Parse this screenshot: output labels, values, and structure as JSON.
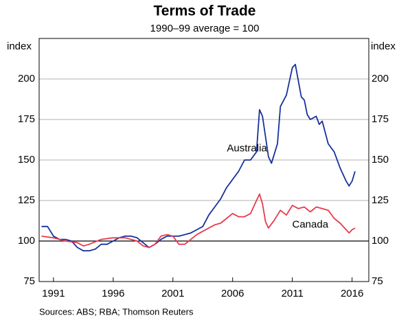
{
  "chart_data": {
    "type": "line",
    "title": "Terms of Trade",
    "subtitle": "1990–99 average = 100",
    "y_label": "index",
    "y2_label": "index",
    "source": "Sources:   ABS; RBA; Thomson Reuters",
    "xlim": [
      1989.8,
      2017.4
    ],
    "xticks": [
      1991,
      1996,
      2001,
      2006,
      2011,
      2016
    ],
    "ylim": [
      75,
      225
    ],
    "yticks": [
      75,
      100,
      125,
      150,
      175,
      200
    ],
    "y2lim": [
      75,
      225
    ],
    "y2ticks": [
      75,
      100,
      125,
      150,
      175,
      200
    ],
    "grid": true,
    "series": [
      {
        "name": "Australia",
        "color": "#16309c",
        "x": [
          1990,
          1990.5,
          1991,
          1991.5,
          1992,
          1992.5,
          1993,
          1993.5,
          1994,
          1994.5,
          1995,
          1995.5,
          1996,
          1996.5,
          1997,
          1997.5,
          1998,
          1998.5,
          1999,
          1999.5,
          2000,
          2000.5,
          2001,
          2001.5,
          2002,
          2002.5,
          2003,
          2003.5,
          2004,
          2004.5,
          2005,
          2005.5,
          2006,
          2006.5,
          2007,
          2007.5,
          2008,
          2008.25,
          2008.5,
          2009,
          2009.25,
          2009.75,
          2010,
          2010.5,
          2011,
          2011.25,
          2011.75,
          2012,
          2012.25,
          2012.5,
          2013,
          2013.25,
          2013.5,
          2014,
          2014.5,
          2015,
          2015.5,
          2015.75,
          2016,
          2016.25
        ],
        "values": [
          109,
          109,
          103,
          101,
          101,
          100,
          96,
          94,
          94,
          95,
          98,
          98,
          100,
          102,
          103,
          103,
          102,
          99,
          96,
          98,
          101,
          103,
          103,
          103,
          104,
          105,
          107,
          109,
          116,
          121,
          126,
          133,
          138,
          143,
          150,
          150,
          155,
          181,
          177,
          152,
          148,
          160,
          183,
          190,
          207,
          209,
          189,
          187,
          178,
          175,
          177,
          172,
          174,
          160,
          155,
          145,
          137,
          134,
          137,
          143
        ]
      },
      {
        "name": "Canada",
        "color": "#e8394b",
        "x": [
          1990,
          1991,
          1992,
          1993,
          1993.5,
          1994,
          1995,
          1996,
          1997,
          1998,
          1998.5,
          1999,
          1999.5,
          2000,
          2000.5,
          2001,
          2001.5,
          2002,
          2002.5,
          2003,
          2003.5,
          2004,
          2004.5,
          2005,
          2005.5,
          2006,
          2006.5,
          2007,
          2007.5,
          2008,
          2008.25,
          2008.5,
          2008.75,
          2009,
          2009.5,
          2010,
          2010.5,
          2011,
          2011.5,
          2012,
          2012.5,
          2013,
          2013.5,
          2014,
          2014.5,
          2015,
          2015.5,
          2015.75,
          2016,
          2016.25
        ],
        "values": [
          103,
          102,
          100,
          99,
          97,
          98,
          101,
          102,
          102,
          100,
          97,
          96,
          98,
          103,
          104,
          103,
          98,
          98,
          101,
          104,
          106,
          108,
          110,
          111,
          114,
          117,
          115,
          115,
          117,
          125,
          129,
          123,
          112,
          108,
          113,
          119,
          116,
          122,
          120,
          121,
          118,
          121,
          120,
          119,
          114,
          111,
          107,
          105,
          107,
          108
        ]
      }
    ],
    "annotations": [
      {
        "text": "Australia",
        "x": 2007.2,
        "y": 157
      },
      {
        "text": "Canada",
        "x": 2012.5,
        "y": 110
      }
    ]
  }
}
